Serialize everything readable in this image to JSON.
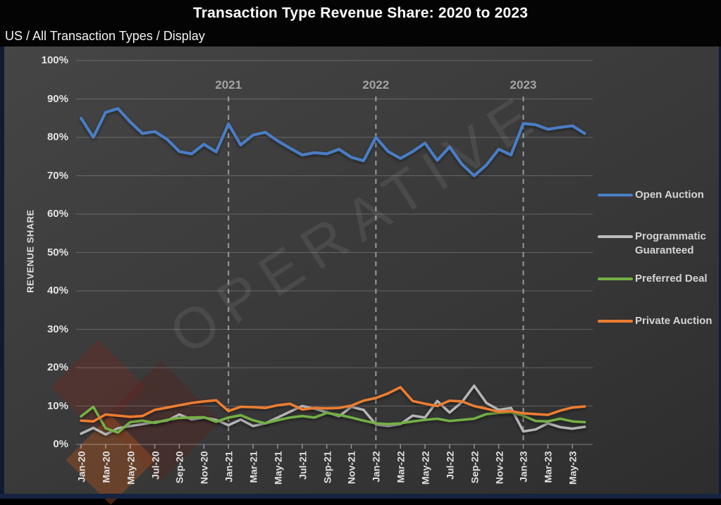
{
  "header": {
    "title": "Transaction Type Revenue Share: 2020 to 2023",
    "subtitle": "US / All Transaction Types / Display"
  },
  "watermark": {
    "text": "OPERATIVE"
  },
  "y_axis": {
    "title": "REVENUE SHARE",
    "tick_labels": [
      "0%",
      "10%",
      "20%",
      "30%",
      "40%",
      "50%",
      "60%",
      "70%",
      "80%",
      "90%",
      "100%"
    ]
  },
  "x_axis": {
    "tick_labels": [
      "Jan-20",
      "Mar-20",
      "May-20",
      "Jul-20",
      "Sep-20",
      "Nov-20",
      "Jan-21",
      "Mar-21",
      "May-21",
      "Jul-21",
      "Sep-21",
      "Nov-21",
      "Jan-22",
      "Mar-22",
      "May-22",
      "Jul-22",
      "Sep-22",
      "Nov-22",
      "Jan-23",
      "Mar-23",
      "May-23"
    ]
  },
  "year_markers": [
    {
      "label": "2021",
      "month_index": 12
    },
    {
      "label": "2022",
      "month_index": 24
    },
    {
      "label": "2023",
      "month_index": 36
    }
  ],
  "legend": [
    {
      "label": "Open Auction",
      "color": "#4a7dc4"
    },
    {
      "label": "Programmatic Guaranteed",
      "color": "#bdbdbd"
    },
    {
      "label": "Preferred Deal",
      "color": "#74b044"
    },
    {
      "label": "Private Auction",
      "color": "#ed7d31"
    }
  ],
  "chart_data": {
    "type": "line",
    "title": "Transaction Type Revenue Share: 2020 to 2023",
    "xlabel": "",
    "ylabel": "REVENUE SHARE",
    "ylim": [
      0,
      100
    ],
    "y_tick_step": 10,
    "y_unit": "%",
    "grid": true,
    "legend_position": "right",
    "x": [
      "Jan-20",
      "Feb-20",
      "Mar-20",
      "Apr-20",
      "May-20",
      "Jun-20",
      "Jul-20",
      "Aug-20",
      "Sep-20",
      "Oct-20",
      "Nov-20",
      "Dec-20",
      "Jan-21",
      "Feb-21",
      "Mar-21",
      "Apr-21",
      "May-21",
      "Jun-21",
      "Jul-21",
      "Aug-21",
      "Sep-21",
      "Oct-21",
      "Nov-21",
      "Dec-21",
      "Jan-22",
      "Feb-22",
      "Mar-22",
      "Apr-22",
      "May-22",
      "Jun-22",
      "Jul-22",
      "Aug-22",
      "Sep-22",
      "Oct-22",
      "Nov-22",
      "Dec-22",
      "Jan-23",
      "Feb-23",
      "Mar-23",
      "Apr-23",
      "May-23",
      "Jun-23"
    ],
    "series": [
      {
        "name": "Open Auction",
        "color": "#4a7dc4",
        "width": 4.2,
        "values": [
          85,
          80,
          86.5,
          87.5,
          84,
          81,
          81.5,
          79.5,
          76.3,
          75.7,
          78.2,
          76.2,
          83.5,
          78,
          80.6,
          81.3,
          79.1,
          77.2,
          75.4,
          76,
          75.7,
          76.9,
          74.8,
          73.9,
          80,
          76.3,
          74.5,
          76.3,
          78.5,
          74,
          77.5,
          73,
          70,
          72.8,
          76.9,
          75.4,
          83.6,
          83.3,
          82.1,
          82.6,
          83,
          81
        ]
      },
      {
        "name": "Programmatic Guaranteed",
        "color": "#b5b5b5",
        "width": 3.6,
        "values": [
          2.8,
          4.3,
          2.6,
          4.2,
          4.8,
          5.3,
          5.8,
          6.2,
          7.8,
          6.5,
          7,
          6.4,
          5,
          6.5,
          4.8,
          5.5,
          7,
          8.5,
          10,
          9.3,
          8.4,
          7.3,
          9.8,
          9,
          5.2,
          4.8,
          5.3,
          7.5,
          7,
          11.3,
          8.3,
          11,
          15.3,
          10.8,
          9,
          9.5,
          3.4,
          3.9,
          5.5,
          4.5,
          4.1,
          4.6
        ]
      },
      {
        "name": "Preferred Deal",
        "color": "#74b044",
        "width": 3.6,
        "values": [
          7.3,
          9.8,
          4.2,
          3.1,
          5.8,
          6.2,
          5.6,
          6.4,
          6.9,
          7,
          7.1,
          5.9,
          7,
          7.6,
          6.3,
          5.5,
          6.3,
          7,
          7.4,
          7,
          8.2,
          7.7,
          7,
          6.2,
          5.5,
          5.3,
          5.5,
          6,
          6.4,
          6.7,
          6.1,
          6.4,
          6.7,
          7.9,
          8.2,
          8.4,
          7.5,
          6.1,
          6,
          6.7,
          6,
          5.8
        ]
      },
      {
        "name": "Private Auction",
        "color": "#ed7d31",
        "width": 3.6,
        "values": [
          6.2,
          6,
          7.8,
          7.5,
          7.2,
          7.4,
          9,
          9.6,
          10.2,
          10.8,
          11.2,
          11.5,
          8.7,
          9.8,
          9.7,
          9.5,
          10.2,
          10.6,
          9.1,
          9.5,
          9.4,
          9.5,
          10.1,
          11.4,
          12.1,
          13.3,
          14.9,
          11.3,
          10.6,
          10,
          11.4,
          11.2,
          10,
          9.3,
          8.5,
          8.7,
          8.1,
          7.9,
          7.7,
          8.8,
          9.6,
          9.9
        ]
      }
    ]
  }
}
